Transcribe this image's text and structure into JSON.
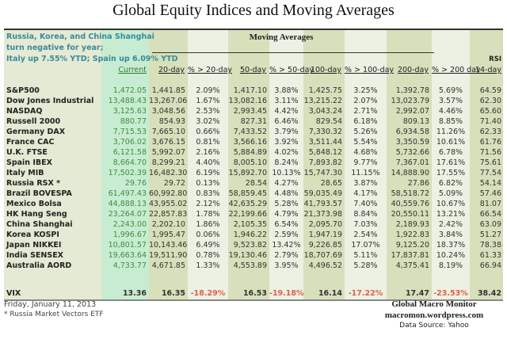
{
  "title": "Global Equity Indices and Moving Averages",
  "note_lines": [
    "Russia, Korea, and China Shanghai",
    " turn negative for year;",
    "Italy up 7.55% YTD;  Spain up 6.09% YTD"
  ],
  "moving_averages_label": "Moving Averages",
  "headers": {
    "current": "Current",
    "d20": "20-day",
    "p20": "% > 20-day",
    "d50": "50-day",
    "p50": "% > 50-day",
    "d100": "100-day",
    "p100": "% > 100-day",
    "d200": "200-day",
    "p200": "% > 200 day",
    "rsi_top": "RSI",
    "rsi": "14-day"
  },
  "rows": [
    {
      "name": "S&P500",
      "current": "1,472.05",
      "d20": "1,441.85",
      "p20": "2.09%",
      "d50": "1,417.10",
      "p50": "3.88%",
      "d100": "1,425.75",
      "p100": "3.25%",
      "d200": "1,392.78",
      "p200": "5.69%",
      "rsi": "64.59"
    },
    {
      "name": "Dow Jones Industrial",
      "current": "13,488.43",
      "d20": "13,267.06",
      "p20": "1.67%",
      "d50": "13,082.16",
      "p50": "3.11%",
      "d100": "13,215.22",
      "p100": "2.07%",
      "d200": "13,023.79",
      "p200": "3.57%",
      "rsi": "62.30"
    },
    {
      "name": "NASDAQ",
      "current": "3,125.63",
      "d20": "3,048.56",
      "p20": "2.53%",
      "d50": "2,993.45",
      "p50": "4.42%",
      "d100": "3,043.24",
      "p100": "2.71%",
      "d200": "2,992.07",
      "p200": "4.46%",
      "rsi": "65.60"
    },
    {
      "name": "Russell 2000",
      "current": "880.77",
      "d20": "854.93",
      "p20": "3.02%",
      "d50": "827.31",
      "p50": "6.46%",
      "d100": "829.54",
      "p100": "6.18%",
      "d200": "809.13",
      "p200": "8.85%",
      "rsi": "71.40"
    },
    {
      "name": "Germany DAX",
      "current": "7,715.53",
      "d20": "7,665.10",
      "p20": "0.66%",
      "d50": "7,433.52",
      "p50": "3.79%",
      "d100": "7,330.32",
      "p100": "5.26%",
      "d200": "6,934.58",
      "p200": "11.26%",
      "rsi": "62.33"
    },
    {
      "name": "France CAC",
      "current": "3,706.02",
      "d20": "3,676.15",
      "p20": "0.81%",
      "d50": "3,566.16",
      "p50": "3.92%",
      "d100": "3,511.44",
      "p100": "5.54%",
      "d200": "3,350.59",
      "p200": "10.61%",
      "rsi": "61.76"
    },
    {
      "name": "U.K. FTSE",
      "current": "6,121.58",
      "d20": "5,992.07",
      "p20": "2.16%",
      "d50": "5,884.89",
      "p50": "4.02%",
      "d100": "5,848.12",
      "p100": "4.68%",
      "d200": "5,732.66",
      "p200": "6.78%",
      "rsi": "71.56"
    },
    {
      "name": "Spain IBEX",
      "current": "8,664.70",
      "d20": "8,299.21",
      "p20": "4.40%",
      "d50": "8,005.10",
      "p50": "8.24%",
      "d100": "7,893.82",
      "p100": "9.77%",
      "d200": "7,367.01",
      "p200": "17.61%",
      "rsi": "75.61"
    },
    {
      "name": "Italy  MIB",
      "current": "17,502.39",
      "d20": "16,482.30",
      "p20": "6.19%",
      "d50": "15,892.70",
      "p50": "10.13%",
      "d100": "15,747.30",
      "p100": "11.15%",
      "d200": "14,888.90",
      "p200": "17.55%",
      "rsi": "77.54"
    },
    {
      "name": "Russia RSX *",
      "current": "29.76",
      "d20": "29.72",
      "p20": "0.13%",
      "d50": "28.54",
      "p50": "4.27%",
      "d100": "28.65",
      "p100": "3.87%",
      "d200": "27.86",
      "p200": "6.82%",
      "rsi": "54.14"
    },
    {
      "name": "Brazil BOVESPA",
      "current": "61,497.43",
      "d20": "60,992.80",
      "p20": "0.83%",
      "d50": "58,859.45",
      "p50": "4.48%",
      "d100": "59,035.49",
      "p100": "4.17%",
      "d200": "58,518.72",
      "p200": "5.09%",
      "rsi": "57.46"
    },
    {
      "name": "Mexico Bolsa",
      "current": "44,888.13",
      "d20": "43,955.02",
      "p20": "2.12%",
      "d50": "42,635.29",
      "p50": "5.28%",
      "d100": "41,793.57",
      "p100": "7.40%",
      "d200": "40,559.76",
      "p200": "10.67%",
      "rsi": "81.07"
    },
    {
      "name": "HK  Hang Seng",
      "current": "23,264.07",
      "d20": "22,857.83",
      "p20": "1.78%",
      "d50": "22,199.66",
      "p50": "4.79%",
      "d100": "21,373.98",
      "p100": "8.84%",
      "d200": "20,550.11",
      "p200": "13.21%",
      "rsi": "66.54"
    },
    {
      "name": "China Shanghai",
      "current": "2,243.00",
      "d20": "2,202.10",
      "p20": "1.86%",
      "d50": "2,105.35",
      "p50": "6.54%",
      "d100": "2,095.70",
      "p100": "7.03%",
      "d200": "2,189.93",
      "p200": "2.42%",
      "rsi": "63.09"
    },
    {
      "name": "Korea KOSPI",
      "current": "1,996.67",
      "d20": "1,995.47",
      "p20": "0.06%",
      "d50": "1,946.22",
      "p50": "2.59%",
      "d100": "1,947.19",
      "p100": "2.54%",
      "d200": "1,922.83",
      "p200": "3.84%",
      "rsi": "51.27"
    },
    {
      "name": "Japan NIKKEI",
      "current": "10,801.57",
      "d20": "10,143.46",
      "p20": "6.49%",
      "d50": "9,523.82",
      "p50": "13.42%",
      "d100": "9,226.85",
      "p100": "17.07%",
      "d200": "9,125.20",
      "p200": "18.37%",
      "rsi": "78.38"
    },
    {
      "name": "India SENSEX",
      "current": "19,663.64",
      "d20": "19,511.90",
      "p20": "0.78%",
      "d50": "19,130.46",
      "p50": "2.79%",
      "d100": "18,707.69",
      "p100": "5.11%",
      "d200": "17,837.81",
      "p200": "10.24%",
      "rsi": "61.33"
    },
    {
      "name": "Australia AORD",
      "current": "4,733.77",
      "d20": "4,671.85",
      "p20": "1.33%",
      "d50": "4,553.89",
      "p50": "3.95%",
      "d100": "4,496.52",
      "p100": "5.28%",
      "d200": "4,375.41",
      "p200": "8.19%",
      "rsi": "66.94"
    }
  ],
  "vix": {
    "name": "VIX",
    "current": "13.36",
    "d20": "16.35",
    "p20": "-18.29%",
    "d50": "16.53",
    "p50": "-19.18%",
    "d100": "16.14",
    "p100": "-17.22%",
    "d200": "17.47",
    "p200": "-23.53%",
    "rsi": "38.42"
  },
  "footer": {
    "date": "Friday, January 11, 2013",
    "footnote": "* Russia Market Vectors ETF",
    "credit_name": "Global Macro Monitor",
    "credit_site": "macromon.wordpress.com",
    "source": "Data Source: Yahoo"
  },
  "colors": {
    "current_text": "#3d8f3d",
    "negative": "#e0604a",
    "note_text": "#3a8a9a"
  }
}
